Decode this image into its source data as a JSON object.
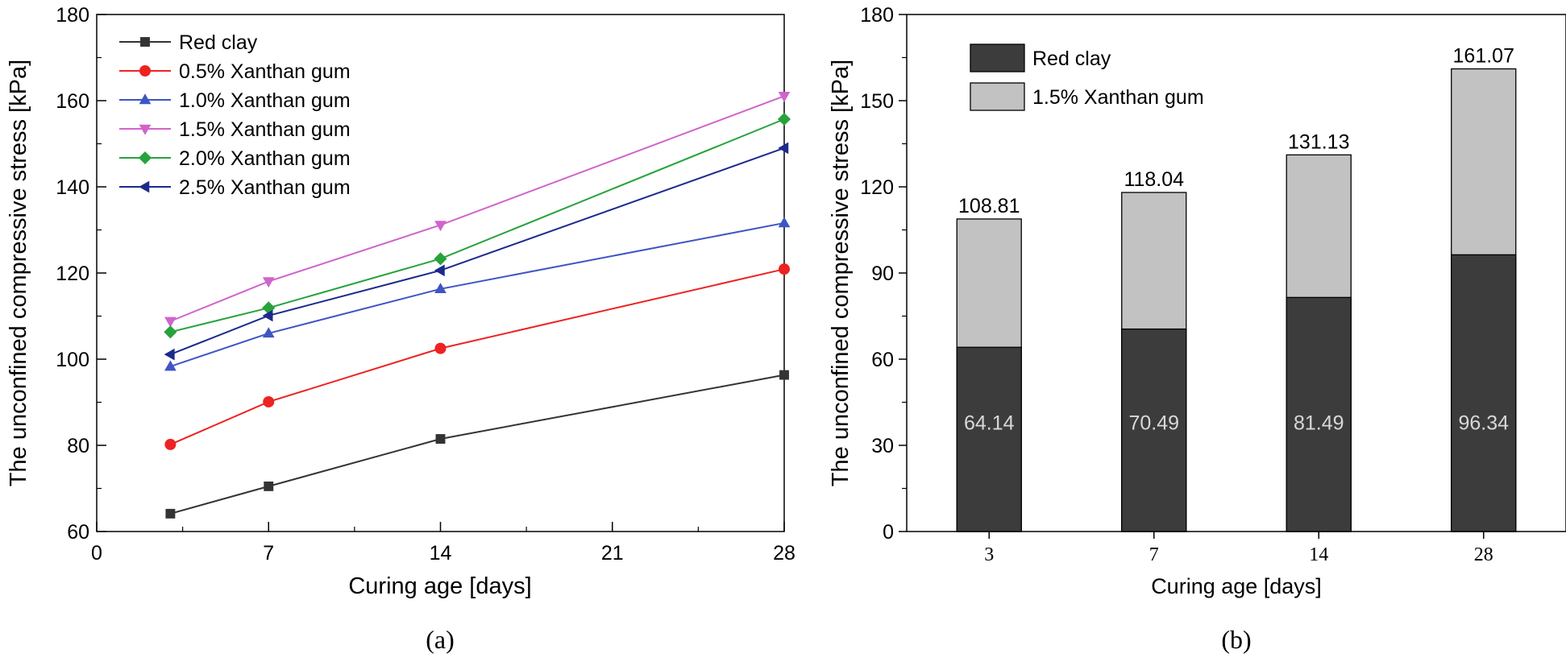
{
  "chart_data": [
    {
      "type": "line",
      "panel_label": "(a)",
      "xlabel": "Curing age [days]",
      "ylabel": "The unconfined compressive stress [kPa]",
      "xlim": [
        0,
        28
      ],
      "ylim": [
        60,
        180
      ],
      "xticks": [
        0,
        7,
        14,
        21,
        28
      ],
      "yticks": [
        60,
        80,
        100,
        120,
        140,
        160,
        180
      ],
      "x": [
        3,
        7,
        14,
        28
      ],
      "legend_position": "top-left",
      "series": [
        {
          "name": "Red clay",
          "color": "#333333",
          "marker": "square",
          "values": [
            64.14,
            70.49,
            81.49,
            96.34
          ]
        },
        {
          "name": "0.5% Xanthan gum",
          "color": "#ee2222",
          "marker": "circle",
          "values": [
            80.2,
            90.1,
            102.5,
            120.9
          ]
        },
        {
          "name": "1.0% Xanthan gum",
          "color": "#3f55c4",
          "marker": "triangle-up",
          "values": [
            98.3,
            106.0,
            116.3,
            131.6
          ]
        },
        {
          "name": "1.5% Xanthan gum",
          "color": "#d064cc",
          "marker": "triangle-down",
          "values": [
            108.81,
            118.04,
            131.13,
            161.07
          ]
        },
        {
          "name": "2.0% Xanthan gum",
          "color": "#27a33b",
          "marker": "diamond",
          "values": [
            106.3,
            111.9,
            123.3,
            155.7
          ]
        },
        {
          "name": "2.5% Xanthan gum",
          "color": "#1c2a8c",
          "marker": "triangle-left",
          "values": [
            101.1,
            110.1,
            120.6,
            149.0
          ]
        }
      ]
    },
    {
      "type": "bar",
      "panel_label": "(b)",
      "xlabel": "Curing age [days]",
      "ylabel": "The unconfined compressive stress [kPa]",
      "categories": [
        "3",
        "7",
        "14",
        "28"
      ],
      "ylim": [
        0,
        180
      ],
      "yticks": [
        0,
        30,
        60,
        90,
        120,
        150,
        180
      ],
      "legend_position": "top-left",
      "series": [
        {
          "name": "Red clay",
          "color": "#3c3c3c",
          "values": [
            64.14,
            70.49,
            81.49,
            96.34
          ],
          "labels": [
            "64.14",
            "70.49",
            "81.49",
            "96.34"
          ]
        },
        {
          "name": "1.5% Xanthan gum",
          "color": "#c2c2c2",
          "values": [
            108.81,
            118.04,
            131.13,
            161.07
          ],
          "labels": [
            "108.81",
            "118.04",
            "131.13",
            "161.07"
          ]
        }
      ]
    }
  ]
}
